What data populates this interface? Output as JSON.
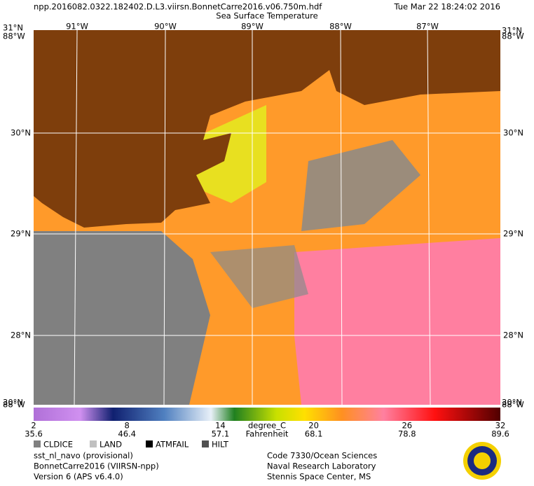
{
  "header": {
    "filename": "npp.2016082.0322.182402.D.L3.viirsn.BonnetCarre2016.v06.750m.hdf",
    "timestamp": "Tue Mar 22 18:24:02 2016",
    "title": "Sea Surface Temperature"
  },
  "map": {
    "corner_top_lat": "31°N",
    "corner_top_lon": "88°W",
    "corner_bottom_lat": "30°N",
    "corner_bottom_lon": "88°W",
    "lon_labels": [
      "91°W",
      "90°W",
      "89°W",
      "88°W",
      "87°W"
    ],
    "lat_labels": [
      "30°N",
      "29°N",
      "28°N"
    ]
  },
  "colorbar": {
    "celsius_ticks": [
      2,
      8,
      14,
      20,
      26,
      32
    ],
    "celsius_unit": "degree_C",
    "fahrenheit_labels": [
      "35.6",
      "46.4",
      "57.1",
      "68.1",
      "78.8",
      "89.6"
    ],
    "fahrenheit_unit": "Fahrenheit"
  },
  "legend": [
    {
      "label": "CLDICE",
      "color": "#808080"
    },
    {
      "label": "LAND",
      "color": "#c0c0c0"
    },
    {
      "label": "ATMFAIL",
      "color": "#000000"
    },
    {
      "label": "HILT",
      "color": "#505050"
    }
  ],
  "footer": {
    "left": [
      "sst_nl_navo (provisional)",
      "BonnetCarre2016 (VIIRSN-npp)",
      "Version 6 (APS v6.4.0)"
    ],
    "right": [
      "Code 7330/Ocean Sciences",
      "Naval Research Laboratory",
      "Stennis Space Center, MS"
    ]
  }
}
